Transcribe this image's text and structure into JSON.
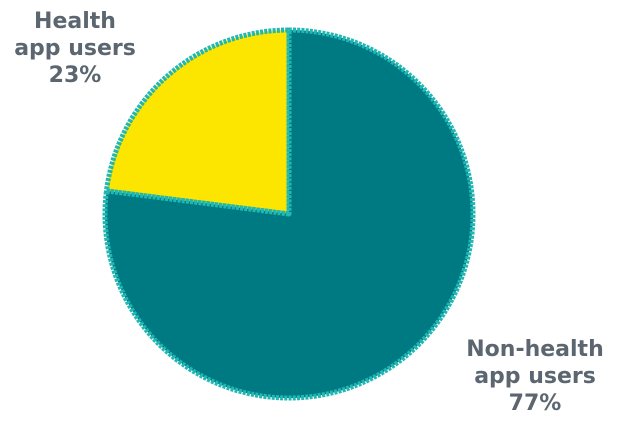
{
  "chart_data": {
    "type": "pie",
    "title": "",
    "slices": [
      {
        "label_lines": [
          "Health",
          "app users"
        ],
        "value_label": "23%",
        "value": 23,
        "color": "#fce600"
      },
      {
        "label_lines": [
          "Non-health",
          "app users"
        ],
        "value_label": "77%",
        "value": 77,
        "color": "#007a82"
      }
    ],
    "outline_color": "#1fb8b4",
    "start_angle": "12 o'clock",
    "direction": "counter-clockwise"
  }
}
